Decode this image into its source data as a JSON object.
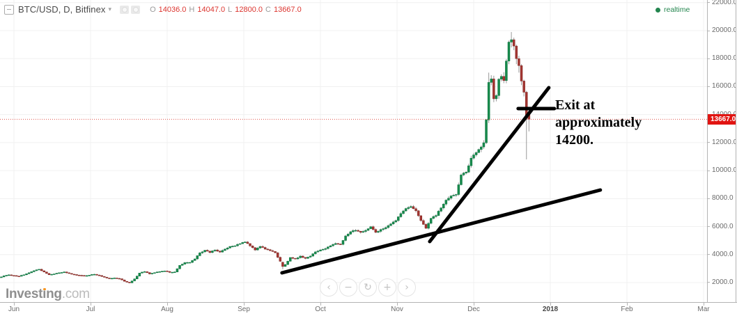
{
  "header": {
    "symbol": "BTC/USD, D, Bitfinex",
    "caret": "▾",
    "ohlc": [
      {
        "label": "O",
        "value": "14036.0"
      },
      {
        "label": "H",
        "value": "14047.0"
      },
      {
        "label": "L",
        "value": "12800.0"
      },
      {
        "label": "C",
        "value": "13667.0"
      }
    ]
  },
  "status": {
    "realtime_label": "realtime",
    "color": "#23854e"
  },
  "price_axis": {
    "labels": [
      "22000.0",
      "20000.0",
      "18000.0",
      "16000.0",
      "14000.0",
      "12000.0",
      "10000.0",
      "8000.0",
      "6000.0",
      "4000.0",
      "2000.0"
    ],
    "last_price_label": "13667.0"
  },
  "time_axis": {
    "labels": [
      {
        "text": "Jun",
        "d": 0
      },
      {
        "text": "Jul",
        "d": 30.5
      },
      {
        "text": "Aug",
        "d": 61
      },
      {
        "text": "Sep",
        "d": 91.5
      },
      {
        "text": "Oct",
        "d": 122
      },
      {
        "text": "Nov",
        "d": 152.5
      },
      {
        "text": "Dec",
        "d": 183
      },
      {
        "text": "2018",
        "d": 213.5,
        "bold": true
      },
      {
        "text": "Feb",
        "d": 244
      },
      {
        "text": "Mar",
        "d": 274.5
      }
    ]
  },
  "chart_data": {
    "type": "candlestick",
    "symbol": "BTC/USD",
    "interval": "D",
    "exchange": "Bitfinex",
    "y_axis": {
      "min": 600,
      "max": 22100,
      "tick_step": 2000,
      "tick_prices": [
        2000,
        4000,
        6000,
        8000,
        10000,
        12000,
        14000,
        16000,
        18000,
        20000,
        22000
      ]
    },
    "x_axis_months": [
      "Jun",
      "Jul",
      "Aug",
      "Sep",
      "Oct",
      "Nov",
      "Dec",
      "2018",
      "Feb",
      "Mar"
    ],
    "last_candle": {
      "open": 14036.0,
      "high": 14047.0,
      "low": 12800.0,
      "close": 13667.0
    },
    "series_day_close": [
      [
        -6,
        2350
      ],
      [
        -4,
        2480
      ],
      [
        -2,
        2550
      ],
      [
        0,
        2500
      ],
      [
        2,
        2450
      ],
      [
        4,
        2560
      ],
      [
        6,
        2700
      ],
      [
        8,
        2850
      ],
      [
        10,
        2950
      ],
      [
        12,
        2760
      ],
      [
        14,
        2560
      ],
      [
        16,
        2620
      ],
      [
        18,
        2700
      ],
      [
        20,
        2760
      ],
      [
        22,
        2650
      ],
      [
        24,
        2570
      ],
      [
        26,
        2520
      ],
      [
        28,
        2480
      ],
      [
        30,
        2530
      ],
      [
        32,
        2590
      ],
      [
        34,
        2500
      ],
      [
        36,
        2380
      ],
      [
        38,
        2280
      ],
      [
        40,
        2330
      ],
      [
        42,
        2270
      ],
      [
        44,
        2090
      ],
      [
        46,
        1980
      ],
      [
        48,
        2260
      ],
      [
        50,
        2680
      ],
      [
        52,
        2780
      ],
      [
        54,
        2620
      ],
      [
        56,
        2710
      ],
      [
        58,
        2780
      ],
      [
        60,
        2830
      ],
      [
        62,
        2730
      ],
      [
        64,
        2760
      ],
      [
        66,
        3230
      ],
      [
        68,
        3420
      ],
      [
        70,
        3440
      ],
      [
        72,
        3690
      ],
      [
        74,
        4120
      ],
      [
        76,
        4310
      ],
      [
        78,
        4150
      ],
      [
        80,
        4330
      ],
      [
        82,
        4180
      ],
      [
        84,
        4390
      ],
      [
        86,
        4580
      ],
      [
        88,
        4630
      ],
      [
        90,
        4780
      ],
      [
        92,
        4900
      ],
      [
        94,
        4620
      ],
      [
        96,
        4330
      ],
      [
        98,
        4580
      ],
      [
        100,
        4390
      ],
      [
        102,
        4280
      ],
      [
        104,
        4130
      ],
      [
        106,
        3520
      ],
      [
        107,
        3450,
        3500,
        2950,
        3150
      ],
      [
        108,
        3290
      ],
      [
        110,
        3790
      ],
      [
        112,
        3690
      ],
      [
        114,
        3890
      ],
      [
        116,
        3730
      ],
      [
        118,
        3890
      ],
      [
        120,
        4190
      ],
      [
        122,
        4330
      ],
      [
        124,
        4430
      ],
      [
        126,
        4630
      ],
      [
        128,
        4790
      ],
      [
        130,
        4730
      ],
      [
        132,
        5330
      ],
      [
        134,
        5630
      ],
      [
        136,
        5730
      ],
      [
        138,
        5590
      ],
      [
        140,
        5730
      ],
      [
        142,
        5990
      ],
      [
        144,
        5590
      ],
      [
        146,
        5790
      ],
      [
        148,
        5930
      ],
      [
        150,
        6190
      ],
      [
        152,
        6430
      ],
      [
        154,
        6930
      ],
      [
        156,
        7290
      ],
      [
        158,
        7430
      ],
      [
        160,
        7130
      ],
      [
        162,
        6430
      ],
      [
        164,
        5880
      ],
      [
        166,
        6590
      ],
      [
        168,
        6790
      ],
      [
        170,
        7330
      ],
      [
        172,
        7890
      ],
      [
        174,
        8190
      ],
      [
        176,
        8290
      ],
      [
        178,
        9690
      ],
      [
        180,
        9890
      ],
      [
        182,
        10890
      ],
      [
        184,
        11290
      ],
      [
        186,
        11690
      ],
      [
        187,
        11990
      ],
      [
        188,
        13630
      ],
      [
        189,
        13620,
        17000,
        13400,
        16300
      ],
      [
        190,
        16550
      ],
      [
        191,
        15130
      ],
      [
        192,
        15360
      ],
      [
        193,
        16530
      ],
      [
        194,
        16730
      ],
      [
        195,
        16430
      ],
      [
        196,
        17830
      ],
      [
        197,
        17830,
        19290,
        17600,
        19180
      ],
      [
        198,
        19180,
        19900,
        18800,
        19350
      ],
      [
        199,
        19350,
        19500,
        18600,
        18900
      ],
      [
        200,
        18900,
        19000,
        17600,
        18000
      ],
      [
        201,
        18000,
        18200,
        17000,
        17500
      ],
      [
        202,
        17500,
        17600,
        16100,
        16400
      ],
      [
        203,
        16400,
        16500,
        15300,
        15600
      ],
      [
        204,
        15600,
        15700,
        10800,
        13900
      ],
      [
        205,
        14036,
        14047,
        12800,
        13667
      ]
    ],
    "drawings": {
      "trendlines": [
        {
          "name": "support-trendline",
          "d1": 106.7,
          "p1": 2695,
          "d2": 233.4,
          "p2": 8613
        },
        {
          "name": "steep-trendline",
          "d1": 165.5,
          "p1": 4933,
          "d2": 212.9,
          "p2": 15923
        }
      ],
      "exit_level_tick": {
        "d1": 200.7,
        "d2": 215.1,
        "price": 14430
      },
      "last_price_line": {
        "price": 13667,
        "style": "dotted",
        "color": "#e0564e"
      },
      "text_annotation": {
        "lines": [
          "Exit at",
          "approximately",
          "14200."
        ],
        "approx_price": 14200
      }
    }
  },
  "nav_buttons": [
    {
      "name": "scroll-left",
      "glyph": "‹"
    },
    {
      "name": "zoom-out",
      "glyph": "−"
    },
    {
      "name": "reset-view",
      "glyph": "↻"
    },
    {
      "name": "zoom-in",
      "glyph": "+"
    },
    {
      "name": "scroll-right",
      "glyph": "›"
    }
  ],
  "logo": {
    "part_a": "Invest",
    "part_i": "ı",
    "part_b": "ng",
    "suffix": ".com"
  },
  "colors": {
    "candle_up": "#178a4c",
    "candle_up_border": "#0e7540",
    "candle_down": "#a33531",
    "candle_down_border": "#832b26",
    "wick": "#999999",
    "grid": "#f0f0f0",
    "value_red": "#dc352f",
    "price_label_bg": "#e11411",
    "trendline": "#000000",
    "realtime_green": "#23854e"
  }
}
